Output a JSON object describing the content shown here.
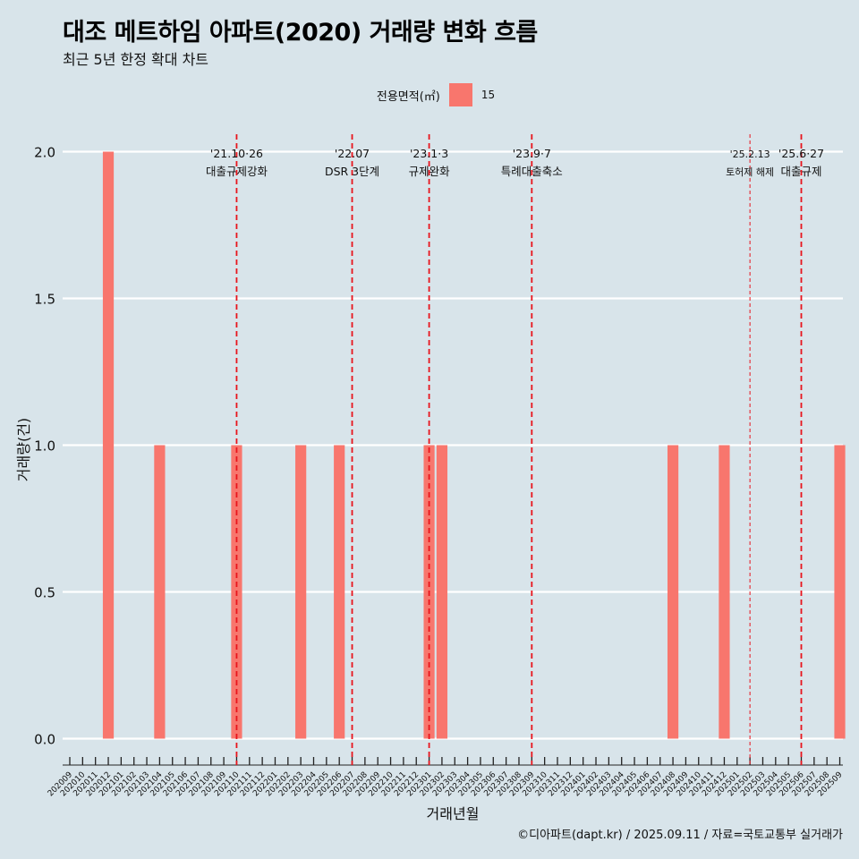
{
  "header": {
    "title": "대조 메트하임 아파트(2020) 거래량 변화 흐름",
    "subtitle": "최근 5년 한정 확대 차트"
  },
  "legend": {
    "title": "전용면적(㎡)",
    "items": [
      {
        "label": "15",
        "color": "#f8766d"
      }
    ]
  },
  "caption": "©디아파트(dapt.kr) / 2025.09.11 / 자료=국토교통부 실거래가",
  "chart_data": {
    "type": "bar",
    "title": "대조 메트하임 아파트(2020) 거래량 변화 흐름",
    "xlabel": "거래년월",
    "ylabel": "거래량(건)",
    "ylim": [
      -0.09,
      2.09
    ],
    "yticks": [
      0.0,
      0.5,
      1.0,
      1.5,
      2.0
    ],
    "ytick_labels": [
      "0.0",
      "0.5",
      "1.0",
      "1.5",
      "2.0"
    ],
    "grid": true,
    "categories": [
      "202009",
      "202010",
      "202011",
      "202012",
      "202101",
      "202102",
      "202103",
      "202104",
      "202105",
      "202106",
      "202107",
      "202108",
      "202109",
      "202110",
      "202111",
      "202112",
      "202201",
      "202202",
      "202203",
      "202204",
      "202205",
      "202206",
      "202207",
      "202208",
      "202209",
      "202210",
      "202211",
      "202212",
      "202301",
      "202302",
      "202303",
      "202304",
      "202305",
      "202306",
      "202307",
      "202308",
      "202309",
      "202310",
      "202311",
      "202312",
      "202401",
      "202402",
      "202403",
      "202404",
      "202405",
      "202406",
      "202407",
      "202408",
      "202409",
      "202410",
      "202411",
      "202412",
      "202501",
      "202502",
      "202503",
      "202504",
      "202505",
      "202506",
      "202507",
      "202508",
      "202509"
    ],
    "series": [
      {
        "name": "15",
        "color": "#f8766d",
        "values": [
          0,
          0,
          0,
          2,
          0,
          0,
          0,
          1,
          0,
          0,
          0,
          0,
          0,
          1,
          0,
          0,
          0,
          0,
          1,
          0,
          0,
          1,
          0,
          0,
          0,
          0,
          0,
          0,
          1,
          1,
          0,
          0,
          0,
          0,
          0,
          0,
          0,
          0,
          0,
          0,
          0,
          0,
          0,
          0,
          0,
          0,
          0,
          1,
          0,
          0,
          0,
          1,
          0,
          0,
          0,
          0,
          0,
          0,
          0,
          0,
          1
        ]
      }
    ],
    "annotations": [
      {
        "x": 13.0,
        "date": "'21.10·26",
        "label": "대출규제강화",
        "style": "dashed"
      },
      {
        "x": 22.0,
        "date": "'22.07",
        "label": "DSR 3단계",
        "style": "dashed"
      },
      {
        "x": 28.0,
        "date": "'23.1·3",
        "label": "규제완화",
        "style": "dashed"
      },
      {
        "x": 36.0,
        "date": "'23.9·7",
        "label": "특례대출축소",
        "style": "dashed"
      },
      {
        "x": 53.0,
        "date": "'25.2.13",
        "label": "토허제 해제",
        "style": "thin"
      },
      {
        "x": 57.0,
        "date": "'25.6·27",
        "label": "대출규제",
        "style": "dashed"
      }
    ]
  }
}
